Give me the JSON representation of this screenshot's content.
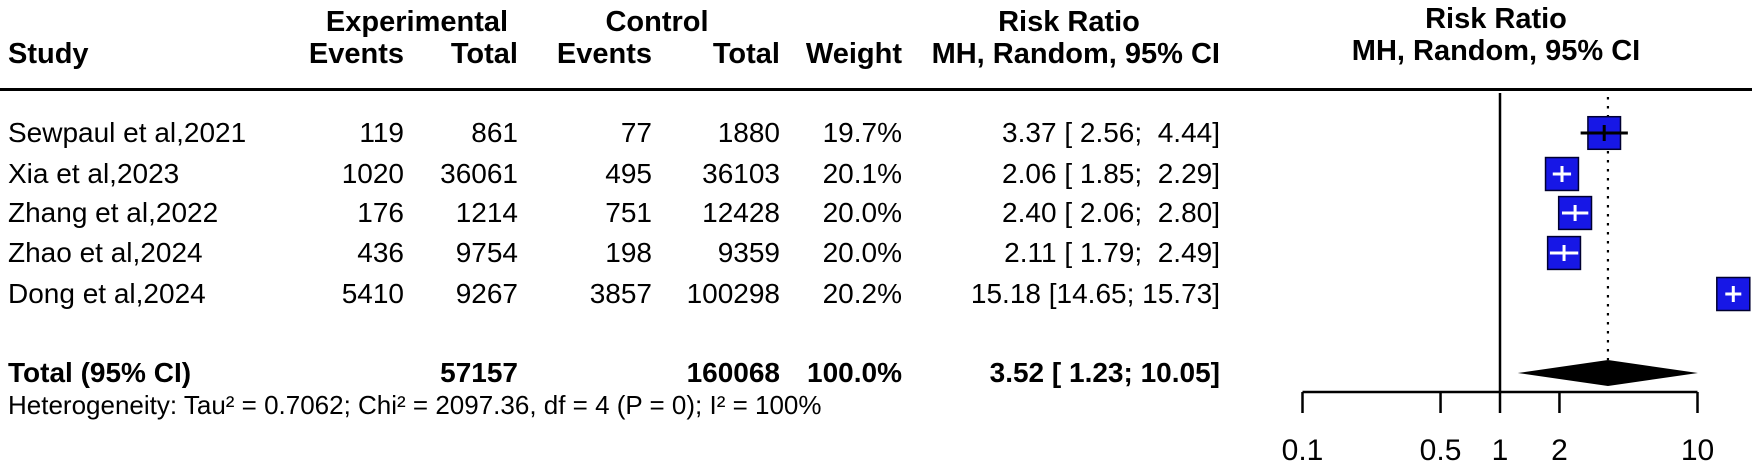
{
  "header": {
    "study": "Study",
    "experimental": "Experimental",
    "control": "Control",
    "events": "Events",
    "total": "Total",
    "weight": "Weight",
    "risk_ratio": "Risk Ratio",
    "method_ci": "MH, Random, 95% CI"
  },
  "rows": [
    {
      "study": "Sewpaul et al,2021",
      "exp_events": "119",
      "exp_total": "861",
      "ctrl_events": "77",
      "ctrl_total": "1880",
      "weight": "19.7%",
      "rr_ci": "3.37 [ 2.56;  4.44]"
    },
    {
      "study": "Xia et al,2023",
      "exp_events": "1020",
      "exp_total": "36061",
      "ctrl_events": "495",
      "ctrl_total": "36103",
      "weight": "20.1%",
      "rr_ci": "2.06 [ 1.85;  2.29]"
    },
    {
      "study": "Zhang et al,2022",
      "exp_events": "176",
      "exp_total": "1214",
      "ctrl_events": "751",
      "ctrl_total": "12428",
      "weight": "20.0%",
      "rr_ci": "2.40 [ 2.06;  2.80]"
    },
    {
      "study": "Zhao et al,2024",
      "exp_events": "436",
      "exp_total": "9754",
      "ctrl_events": "198",
      "ctrl_total": "9359",
      "weight": "20.0%",
      "rr_ci": "2.11 [ 1.79;  2.49]"
    },
    {
      "study": "Dong et al,2024",
      "exp_events": "5410",
      "exp_total": "9267",
      "ctrl_events": "3857",
      "ctrl_total": "100298",
      "weight": "20.2%",
      "rr_ci": "15.18 [14.65; 15.73]"
    }
  ],
  "total_row": {
    "label": "Total (95% CI)",
    "exp_total": "57157",
    "ctrl_total": "160068",
    "weight": "100.0%",
    "rr_ci": "3.52 [ 1.23; 10.05]"
  },
  "heterogeneity": "Heterogeneity: Tau² = 0.7062; Chi² = 2097.36, df = 4 (P = 0); I² = 100%",
  "chart_data": {
    "type": "forest",
    "x_scale": "log10",
    "axis_range": [
      0.1,
      10
    ],
    "axis_ticks": [
      0.1,
      0.5,
      1,
      2,
      10
    ],
    "ref_line": 1,
    "effect_label": "Risk Ratio",
    "model": "MH, Random, 95% CI",
    "studies": [
      {
        "name": "Sewpaul et al,2021",
        "rr": 3.37,
        "ci_low": 2.56,
        "ci_high": 4.44,
        "weight": 19.7
      },
      {
        "name": "Xia et al,2023",
        "rr": 2.06,
        "ci_low": 1.85,
        "ci_high": 2.29,
        "weight": 20.1
      },
      {
        "name": "Zhang et al,2022",
        "rr": 2.4,
        "ci_low": 2.06,
        "ci_high": 2.8,
        "weight": 20.0
      },
      {
        "name": "Zhao et al,2024",
        "rr": 2.11,
        "ci_low": 1.79,
        "ci_high": 2.49,
        "weight": 20.0
      },
      {
        "name": "Dong et al,2024",
        "rr": 15.18,
        "ci_low": 14.65,
        "ci_high": 15.73,
        "weight": 20.2
      }
    ],
    "pooled": {
      "rr": 3.52,
      "ci_low": 1.23,
      "ci_high": 10.05,
      "weight": 100.0
    },
    "colors": {
      "square": "#1717e6",
      "square_border": "#000030",
      "diamond": "#000000",
      "line": "#000000"
    }
  }
}
